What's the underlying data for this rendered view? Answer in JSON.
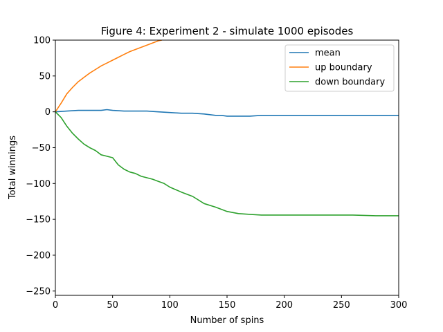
{
  "chart_data": {
    "type": "line",
    "title": "Figure 4: Experiment 2 - simulate 1000 episodes",
    "xlabel": "Number of spins",
    "ylabel": "Total winnings",
    "xlim": [
      0,
      300
    ],
    "ylim": [
      -256,
      100
    ],
    "xticks": [
      0,
      50,
      100,
      150,
      200,
      250,
      300
    ],
    "xtick_labels": [
      "0",
      "50",
      "100",
      "150",
      "200",
      "250",
      "300"
    ],
    "yticks": [
      100,
      50,
      0,
      -50,
      -100,
      -150,
      -200,
      -250
    ],
    "ytick_labels": [
      "100",
      "50",
      "0",
      "−50",
      "−100",
      "−150",
      "−200",
      "−250"
    ],
    "grid": false,
    "legend_position": "top-right",
    "series": [
      {
        "name": "mean",
        "color": "#1f77b4",
        "x": [
          0,
          10,
          20,
          30,
          40,
          45,
          50,
          60,
          70,
          80,
          90,
          100,
          110,
          120,
          130,
          140,
          145,
          150,
          160,
          170,
          180,
          200,
          220,
          240,
          260,
          280,
          300
        ],
        "y": [
          0,
          1,
          2,
          2,
          2,
          3,
          2,
          1,
          1,
          1,
          0,
          -1,
          -2,
          -2,
          -3,
          -5,
          -5,
          -6,
          -6,
          -6,
          -5,
          -5,
          -5,
          -5,
          -5,
          -5,
          -5
        ]
      },
      {
        "name": "up boundary",
        "color": "#ff7f0e",
        "x": [
          0,
          5,
          10,
          15,
          20,
          25,
          30,
          35,
          40,
          45,
          50,
          55,
          60,
          65,
          70,
          75,
          80,
          85,
          90,
          93
        ],
        "y": [
          0,
          12,
          25,
          34,
          42,
          48,
          54,
          59,
          64,
          68,
          72,
          76,
          80,
          84,
          87,
          90,
          93,
          96,
          99,
          100
        ]
      },
      {
        "name": "down boundary",
        "color": "#2ca02c",
        "x": [
          0,
          5,
          10,
          15,
          20,
          25,
          30,
          35,
          40,
          45,
          50,
          55,
          60,
          65,
          70,
          75,
          80,
          85,
          90,
          95,
          100,
          110,
          120,
          130,
          140,
          150,
          160,
          170,
          180,
          200,
          220,
          240,
          260,
          280,
          300
        ],
        "y": [
          0,
          -8,
          -20,
          -30,
          -38,
          -45,
          -50,
          -54,
          -60,
          -62,
          -64,
          -74,
          -80,
          -84,
          -86,
          -90,
          -92,
          -94,
          -97,
          -100,
          -105,
          -112,
          -118,
          -128,
          -133,
          -139,
          -142,
          -143,
          -144,
          -144,
          -144,
          -144,
          -144,
          -145,
          -145
        ]
      }
    ]
  }
}
